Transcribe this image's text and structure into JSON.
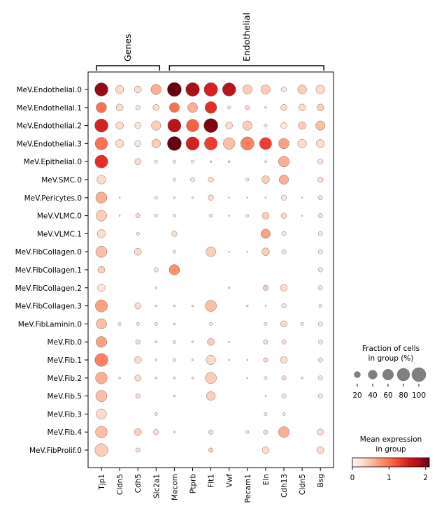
{
  "chart_data": {
    "type": "dotplot",
    "genes": [
      "Tjp1",
      "Cldn5",
      "Cdh5",
      "Slc2a1",
      "Mecom",
      "Ptprb",
      "Flt1",
      "Vwf",
      "Pecam1",
      "Eln",
      "Cdh13",
      "Cldn5",
      "Bsg"
    ],
    "groups": [
      "MeV.Endothelial.0",
      "MeV.Endothelial.1",
      "MeV.Endothelial.2",
      "MeV.Endothelial.3",
      "MeV.Epithelial.0",
      "MeV.SMC.0",
      "MeV.Pericytes.0",
      "MeV.VLMC.0",
      "MeV.VLMC.1",
      "MeV.FibCollagen.0",
      "MeV.FibCollagen.1",
      "MeV.FibCollagen.2",
      "MeV.FibCollagen.3",
      "MeV.FibLaminin.0",
      "MeV.Fib.0",
      "MeV.Fib.1",
      "MeV.Fib.2",
      "MeV.Fib.5",
      "MeV.Fib.3",
      "MeV.Fib.4",
      "MeV.FibProlif.0"
    ],
    "brackets": [
      {
        "label": "Genes",
        "start": 0,
        "end": 3
      },
      {
        "label": "Endothelial",
        "start": 4,
        "end": 12
      }
    ],
    "fraction": [
      [
        90,
        35,
        25,
        55,
        100,
        95,
        95,
        90,
        45,
        45,
        15,
        40,
        40
      ],
      [
        55,
        25,
        10,
        20,
        50,
        50,
        70,
        5,
        10,
        2,
        20,
        25,
        25
      ],
      [
        90,
        30,
        20,
        45,
        90,
        80,
        100,
        25,
        45,
        5,
        20,
        30,
        45
      ],
      [
        80,
        35,
        20,
        40,
        100,
        90,
        85,
        70,
        90,
        75,
        55,
        40,
        35
      ],
      [
        85,
        0,
        20,
        5,
        5,
        5,
        2,
        2,
        0,
        2,
        60,
        0,
        15
      ],
      [
        40,
        0,
        0,
        0,
        5,
        10,
        15,
        0,
        5,
        30,
        45,
        0,
        15
      ],
      [
        65,
        1,
        0,
        5,
        2,
        2,
        15,
        1,
        1,
        1,
        15,
        1,
        10
      ],
      [
        60,
        1,
        10,
        5,
        5,
        0,
        5,
        1,
        5,
        25,
        15,
        1,
        10
      ],
      [
        35,
        0,
        5,
        0,
        15,
        0,
        0,
        0,
        0,
        45,
        10,
        0,
        10
      ],
      [
        65,
        0,
        25,
        0,
        5,
        0,
        50,
        1,
        1,
        30,
        10,
        0,
        10
      ],
      [
        25,
        0,
        0,
        10,
        55,
        0,
        0,
        0,
        0,
        0,
        0,
        0,
        10
      ],
      [
        30,
        0,
        0,
        2,
        0,
        0,
        0,
        2,
        0,
        15,
        25,
        0,
        10
      ],
      [
        75,
        0,
        20,
        2,
        2,
        2,
        65,
        0,
        2,
        1,
        10,
        0,
        5
      ],
      [
        55,
        5,
        5,
        5,
        2,
        0,
        5,
        0,
        0,
        5,
        20,
        5,
        10
      ],
      [
        60,
        0,
        10,
        2,
        5,
        2,
        25,
        1,
        0,
        10,
        10,
        0,
        10
      ],
      [
        85,
        0,
        25,
        2,
        5,
        2,
        45,
        1,
        1,
        10,
        25,
        0,
        10
      ],
      [
        70,
        2,
        20,
        2,
        2,
        2,
        65,
        0,
        1,
        5,
        10,
        2,
        10
      ],
      [
        65,
        0,
        10,
        0,
        2,
        0,
        40,
        0,
        0,
        1,
        10,
        0,
        10
      ],
      [
        55,
        0,
        0,
        5,
        0,
        0,
        0,
        0,
        0,
        5,
        5,
        0,
        0
      ],
      [
        70,
        0,
        25,
        15,
        2,
        0,
        10,
        0,
        5,
        10,
        60,
        0,
        20
      ],
      [
        85,
        0,
        10,
        0,
        0,
        0,
        10,
        0,
        0,
        25,
        0,
        0,
        25
      ]
    ],
    "expression": [
      [
        1.9,
        0.3,
        0.3,
        0.6,
        2.1,
        1.8,
        1.5,
        1.7,
        0.4,
        0.4,
        0.2,
        0.4,
        0.3
      ],
      [
        1.0,
        0.3,
        0.2,
        0.3,
        1.0,
        0.6,
        1.4,
        0.2,
        0.3,
        0.2,
        0.3,
        0.3,
        0.4
      ],
      [
        1.5,
        0.3,
        0.2,
        0.4,
        1.7,
        1.1,
        2.0,
        0.3,
        0.4,
        0.2,
        0.2,
        0.4,
        0.5
      ],
      [
        1.0,
        0.3,
        0.2,
        0.4,
        2.1,
        1.5,
        1.3,
        0.5,
        0.9,
        1.3,
        0.7,
        0.3,
        0.3
      ],
      [
        1.4,
        0,
        0.3,
        0.2,
        0.2,
        0.2,
        0.2,
        0.2,
        0,
        0.2,
        0.6,
        0,
        0.2
      ],
      [
        0.3,
        0,
        0,
        0,
        0.2,
        0.2,
        0.3,
        0,
        0.2,
        0.4,
        0.6,
        0,
        0.3
      ],
      [
        0.6,
        0.2,
        0,
        0.2,
        0.2,
        0.2,
        0.3,
        0.2,
        0.2,
        0.2,
        0.2,
        0.2,
        0.2
      ],
      [
        0.4,
        0.2,
        0.3,
        0.2,
        0.2,
        0,
        0.2,
        0.2,
        0.2,
        0.4,
        0.3,
        0.2,
        0.2
      ],
      [
        0.3,
        0,
        0.2,
        0,
        0.3,
        0,
        0,
        0,
        0,
        0.7,
        0.2,
        0,
        0.2
      ],
      [
        0.5,
        0,
        0.3,
        0,
        0.2,
        0,
        0.4,
        0.2,
        0.2,
        0.4,
        0.2,
        0,
        0.2
      ],
      [
        0.4,
        0,
        0,
        0.2,
        0.8,
        0,
        0,
        0,
        0,
        0,
        0,
        0,
        0.2
      ],
      [
        0.2,
        0,
        0,
        0.2,
        0,
        0,
        0,
        0.2,
        0,
        0.4,
        0.3,
        0,
        0.2
      ],
      [
        0.7,
        0,
        0.3,
        0.2,
        0.2,
        0.2,
        0.5,
        0,
        0.2,
        0.2,
        0.2,
        0,
        0.2
      ],
      [
        0.5,
        0.2,
        0.2,
        0.2,
        0.2,
        0,
        0.2,
        0,
        0,
        0.2,
        0.3,
        0.2,
        0.2
      ],
      [
        0.7,
        0,
        0.3,
        0.2,
        0.2,
        0.2,
        0.4,
        0.2,
        0,
        0.3,
        0.3,
        0,
        0.2
      ],
      [
        0.9,
        0,
        0.3,
        0.2,
        0.2,
        0.2,
        0.3,
        0.2,
        0.2,
        0.3,
        0.3,
        0,
        0.2
      ],
      [
        0.6,
        0.2,
        0.3,
        0.2,
        0.2,
        0.2,
        0.4,
        0,
        0.2,
        0.2,
        0.3,
        0.2,
        0.2
      ],
      [
        0.5,
        0,
        0.3,
        0,
        0.2,
        0,
        0.4,
        0,
        0,
        0.2,
        0.2,
        0,
        0.2
      ],
      [
        0.3,
        0,
        0,
        0.2,
        0,
        0,
        0,
        0,
        0,
        0.2,
        0.2,
        0,
        0
      ],
      [
        0.5,
        0,
        0.4,
        0.3,
        0.2,
        0,
        0.3,
        0,
        0.2,
        0.3,
        0.6,
        0,
        0.3
      ],
      [
        0.4,
        0,
        0.3,
        0,
        0,
        0,
        0.4,
        0,
        0,
        0.3,
        0,
        0,
        0.3
      ]
    ],
    "size_legend": {
      "title_line1": "Fraction of cells",
      "title_line2": "in group (%)",
      "ticks": [
        20,
        40,
        60,
        80,
        100
      ]
    },
    "color_legend": {
      "title_line1": "Mean expression",
      "title_line2": "in group",
      "ticks": [
        0,
        1,
        2
      ],
      "range": [
        0,
        2.1
      ]
    },
    "colormap": [
      "#fff5f0",
      "#fee0d2",
      "#fcbba1",
      "#fc9272",
      "#fb6a4a",
      "#ef3b2c",
      "#cb181d",
      "#a50f15",
      "#67000d"
    ]
  }
}
